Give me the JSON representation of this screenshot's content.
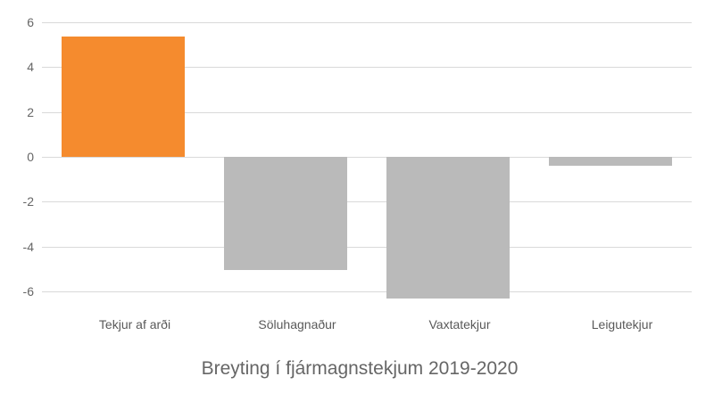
{
  "chart_data": {
    "type": "bar",
    "title": "Breyting í fjármagnstekjum 2019-2020",
    "xlabel": "",
    "ylabel": "",
    "categories": [
      "Tekjur af arði",
      "Söluhagnaður",
      "Vaxtatekjur",
      "Leigutekjur"
    ],
    "values": [
      5.35,
      -5.05,
      -6.3,
      -0.4
    ],
    "bar_colors": [
      "#f58b2e",
      "#bababa",
      "#bababa",
      "#bababa"
    ],
    "ylim": [
      -6,
      6
    ],
    "yticks": [
      6,
      4,
      2,
      0,
      -2,
      -4,
      -6
    ],
    "ytick_labels": [
      "6",
      "4",
      "2",
      "0",
      "-2",
      "-4",
      "-6"
    ],
    "grid": true,
    "legend": null
  },
  "colors": {
    "highlight": "#f58b2e",
    "neutral": "#bababa",
    "gridline": "#d9d9d9",
    "text": "#666666"
  }
}
